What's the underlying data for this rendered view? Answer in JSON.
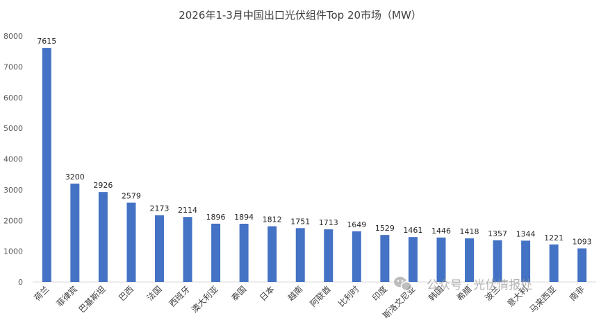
{
  "chart_data": {
    "type": "bar",
    "title": "2026年1-3月中国出口光伏组件Top 20市场（MW）",
    "categories": [
      "荷兰",
      "菲律宾",
      "巴基斯坦",
      "巴西",
      "法国",
      "西班牙",
      "澳大利亚",
      "泰国",
      "日本",
      "越南",
      "阿联酋",
      "比利时",
      "印度",
      "斯洛文尼亚",
      "韩国",
      "希腊",
      "波兰",
      "意大利",
      "马来西亚",
      "南非"
    ],
    "values": [
      7615,
      3200,
      2926,
      2579,
      2173,
      2114,
      1896,
      1894,
      1812,
      1751,
      1713,
      1649,
      1529,
      1461,
      1446,
      1418,
      1357,
      1344,
      1221,
      1093
    ],
    "yticks": [
      0,
      1000,
      2000,
      3000,
      4000,
      5000,
      6000,
      7000,
      8000
    ],
    "ylim": [
      0,
      8000
    ],
    "grid": false,
    "bar_color": "#4472C4"
  },
  "watermark": {
    "text": "公众号 · 光伏情报处",
    "icon": "wechat-icon"
  }
}
